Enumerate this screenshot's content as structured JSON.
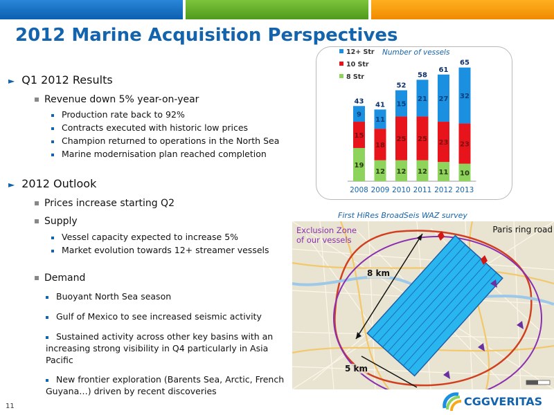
{
  "colors": {
    "title_blue": "#1464ad",
    "bar_12plus": "#1b8fe0",
    "bar_10": "#e8141c",
    "bar_8": "#8ed45c",
    "exclusion_purple": "#8a2fb0"
  },
  "slide": {
    "title": "2012 Marine Acquisition Perspectives",
    "page_number": "11",
    "logo_text": "CGGVERITAS"
  },
  "bullets": {
    "q1": {
      "heading": "Q1 2012 Results",
      "revenue": "Revenue down 5% year-on-year",
      "items": [
        "Production rate back to 92%",
        "Contracts executed with historic low prices",
        "Champion returned to operations in the North Sea",
        "Marine modernisation plan reached completion"
      ]
    },
    "outlook": {
      "heading": "2012 Outlook",
      "prices": "Prices increase starting Q2",
      "supply": "Supply",
      "supply_items": [
        "Vessel capacity expected to increase 5%",
        "Market evolution towards 12+ streamer vessels"
      ],
      "demand": "Demand",
      "demand_items": [
        "Buoyant North Sea season",
        "Gulf of Mexico to see increased seismic activity",
        "Sustained activity across other key basins with an increasing strong visibility in Q4 particularly in Asia Pacific",
        "New frontier exploration (Barents Sea, Arctic, French Guyana…) driven by recent discoveries"
      ]
    }
  },
  "chart_data": {
    "type": "bar",
    "stacked": true,
    "title": "Number of vessels",
    "categories": [
      "2008",
      "2009",
      "2010",
      "2011",
      "2012",
      "2013"
    ],
    "series": [
      {
        "name": "8 Str",
        "color": "#8ed45c",
        "values": [
          19,
          12,
          12,
          12,
          11,
          10
        ]
      },
      {
        "name": "10 Str",
        "color": "#e8141c",
        "values": [
          15,
          18,
          25,
          25,
          23,
          23
        ]
      },
      {
        "name": "12+ Str",
        "color": "#1b8fe0",
        "values": [
          9,
          11,
          15,
          21,
          27,
          32
        ]
      }
    ],
    "totals": [
      43,
      41,
      52,
      58,
      61,
      65
    ],
    "ylim": [
      0,
      70
    ],
    "legend_position": "top-left",
    "grid": false
  },
  "map": {
    "caption": "First HiRes BroadSeis WAZ survey",
    "exclusion_label": "Exclusion Zone of our vessels",
    "city_label": "Paris ring road",
    "dim_long": "8 km",
    "dim_short": "5 km"
  }
}
